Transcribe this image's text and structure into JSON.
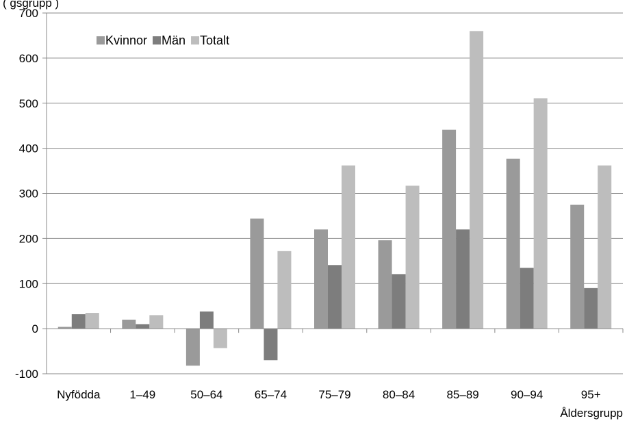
{
  "chart_data": {
    "type": "bar",
    "title": "",
    "top_note": "(                                             gsgrupp   )",
    "xlabel": "Åldersgrupp",
    "ylabel": "",
    "ylim": [
      -100,
      700
    ],
    "yticks": [
      -100,
      0,
      100,
      200,
      300,
      400,
      500,
      600,
      700
    ],
    "grid": true,
    "legend_position": "top-left",
    "categories": [
      "Nyfödda",
      "1–49",
      "50–64",
      "65–74",
      "75–79",
      "80–84",
      "85–89",
      "90–94",
      "95+"
    ],
    "series": [
      {
        "name": "Kvinnor",
        "color": "#9a9a9a",
        "values": [
          4,
          20,
          -82,
          244,
          220,
          196,
          441,
          377,
          275
        ]
      },
      {
        "name": "Män",
        "color": "#7d7d7d",
        "values": [
          32,
          10,
          38,
          -70,
          141,
          121,
          220,
          135,
          90
        ]
      },
      {
        "name": "Totalt",
        "color": "#bdbdbd",
        "values": [
          35,
          30,
          -43,
          172,
          362,
          317,
          660,
          511,
          362
        ]
      }
    ]
  }
}
